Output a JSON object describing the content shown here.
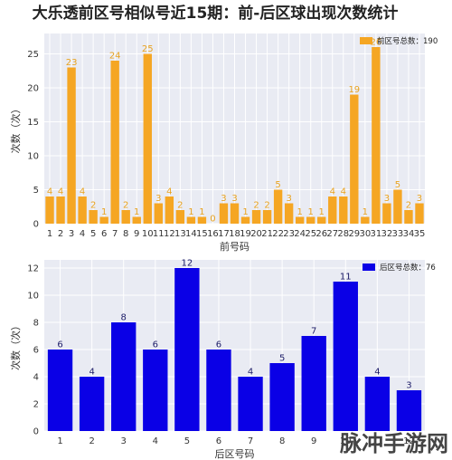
{
  "figure": {
    "title": "大乐透前区号相似号近15期：前-后区球出现次数统计",
    "watermark": "脉冲手游网"
  },
  "chart_data": [
    {
      "type": "bar",
      "categories": [
        "1",
        "2",
        "3",
        "4",
        "5",
        "6",
        "7",
        "8",
        "9",
        "10",
        "11",
        "12",
        "13",
        "14",
        "15",
        "16",
        "17",
        "18",
        "19",
        "20",
        "21",
        "22",
        "23",
        "24",
        "25",
        "26",
        "27",
        "28",
        "29",
        "30",
        "31",
        "32",
        "33",
        "34",
        "35"
      ],
      "values": [
        4,
        4,
        23,
        4,
        2,
        1,
        24,
        2,
        1,
        25,
        3,
        4,
        2,
        1,
        1,
        0,
        3,
        3,
        1,
        2,
        2,
        5,
        3,
        1,
        1,
        1,
        4,
        4,
        19,
        1,
        26,
        3,
        5,
        2,
        3
      ],
      "title": "",
      "xlabel": "前号码",
      "ylabel": "次数（次）",
      "ylim": [
        0,
        28
      ],
      "yticks": [
        0,
        5,
        10,
        15,
        20,
        25
      ],
      "legend": "前区号总数：190",
      "legend_position": "top-right",
      "grid": true,
      "bar_color": "#F5A623",
      "label_color": "#E8A21F"
    },
    {
      "type": "bar",
      "categories": [
        "1",
        "2",
        "3",
        "4",
        "5",
        "6",
        "7",
        "8",
        "9",
        "10",
        "11",
        "12"
      ],
      "values": [
        6,
        4,
        8,
        6,
        12,
        6,
        4,
        5,
        7,
        11,
        4,
        3
      ],
      "title": "",
      "xlabel": "后区号码",
      "ylabel": "次数（次）",
      "ylim": [
        0,
        12.6
      ],
      "yticks": [
        0,
        2,
        4,
        6,
        8,
        10,
        12
      ],
      "legend": "后区号总数：76",
      "legend_position": "top-right",
      "grid": true,
      "bar_color": "#0A00E6",
      "label_color": "#1a1a66"
    }
  ]
}
